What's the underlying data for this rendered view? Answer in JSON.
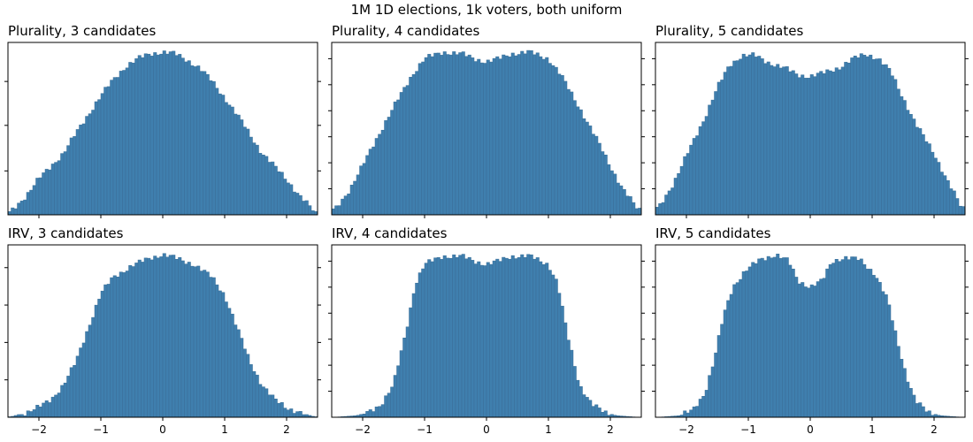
{
  "figure": {
    "suptitle": "1M 1D elections, 1k voters, both uniform"
  },
  "chart_data": [
    {
      "type": "bar",
      "title": "Plurality, 3 candidates",
      "method": "Plurality",
      "candidates": 3,
      "xlim": [
        -2.5,
        2.5
      ],
      "ylim": [
        0,
        1.06
      ],
      "bins": 100,
      "profile": [
        [
          -2.45,
          0.02
        ],
        [
          -2.2,
          0.12
        ],
        [
          -2.0,
          0.22
        ],
        [
          -1.6,
          0.38
        ],
        [
          -1.3,
          0.56
        ],
        [
          -1.0,
          0.73
        ],
        [
          -0.8,
          0.83
        ],
        [
          -0.6,
          0.91
        ],
        [
          -0.4,
          0.96
        ],
        [
          -0.2,
          0.99
        ],
        [
          0.0,
          1.0
        ],
        [
          0.2,
          0.99
        ],
        [
          0.4,
          0.95
        ],
        [
          0.6,
          0.9
        ],
        [
          0.8,
          0.82
        ],
        [
          1.0,
          0.72
        ],
        [
          1.3,
          0.56
        ],
        [
          1.6,
          0.38
        ],
        [
          2.0,
          0.22
        ],
        [
          2.2,
          0.12
        ],
        [
          2.45,
          0.02
        ]
      ],
      "xticks": [
        -2,
        -1,
        0,
        1,
        2
      ],
      "xtick_labels_shown": false,
      "yticks": [
        0.27,
        0.55,
        0.82
      ]
    },
    {
      "type": "bar",
      "title": "Plurality, 4 candidates",
      "method": "Plurality",
      "candidates": 4,
      "xlim": [
        -2.5,
        2.5
      ],
      "ylim": [
        0,
        1.06
      ],
      "bins": 100,
      "profile": [
        [
          -2.45,
          0.03
        ],
        [
          -2.2,
          0.16
        ],
        [
          -2.0,
          0.3
        ],
        [
          -1.8,
          0.45
        ],
        [
          -1.5,
          0.66
        ],
        [
          -1.2,
          0.86
        ],
        [
          -1.0,
          0.96
        ],
        [
          -0.7,
          1.0
        ],
        [
          -0.4,
          0.99
        ],
        [
          -0.2,
          0.96
        ],
        [
          0.0,
          0.94
        ],
        [
          0.2,
          0.96
        ],
        [
          0.4,
          0.99
        ],
        [
          0.7,
          1.0
        ],
        [
          1.0,
          0.96
        ],
        [
          1.2,
          0.86
        ],
        [
          1.5,
          0.66
        ],
        [
          1.8,
          0.45
        ],
        [
          2.0,
          0.3
        ],
        [
          2.2,
          0.16
        ],
        [
          2.45,
          0.03
        ]
      ],
      "xticks": [
        -2,
        -1,
        0,
        1,
        2
      ],
      "xtick_labels_shown": false,
      "yticks": [
        0.16,
        0.32,
        0.48,
        0.64,
        0.8,
        0.96
      ]
    },
    {
      "type": "bar",
      "title": "Plurality, 5 candidates",
      "method": "Plurality",
      "candidates": 5,
      "xlim": [
        -2.5,
        2.5
      ],
      "ylim": [
        0,
        1.06
      ],
      "bins": 100,
      "profile": [
        [
          -2.45,
          0.04
        ],
        [
          -2.2,
          0.2
        ],
        [
          -2.0,
          0.36
        ],
        [
          -1.7,
          0.6
        ],
        [
          -1.5,
          0.78
        ],
        [
          -1.3,
          0.92
        ],
        [
          -1.1,
          0.98
        ],
        [
          -0.9,
          0.98
        ],
        [
          -0.7,
          0.94
        ],
        [
          -0.4,
          0.9
        ],
        [
          -0.2,
          0.86
        ],
        [
          0.0,
          0.85
        ],
        [
          0.2,
          0.87
        ],
        [
          0.5,
          0.91
        ],
        [
          0.7,
          0.96
        ],
        [
          0.9,
          0.99
        ],
        [
          1.1,
          0.96
        ],
        [
          1.3,
          0.88
        ],
        [
          1.5,
          0.72
        ],
        [
          1.7,
          0.56
        ],
        [
          2.0,
          0.38
        ],
        [
          2.2,
          0.22
        ],
        [
          2.45,
          0.04
        ]
      ],
      "xticks": [
        -2,
        -1,
        0,
        1,
        2
      ],
      "xtick_labels_shown": false,
      "yticks": [
        0.16,
        0.32,
        0.48,
        0.64,
        0.8,
        0.96
      ]
    },
    {
      "type": "bar",
      "title": "IRV, 3 candidates",
      "method": "IRV",
      "candidates": 3,
      "xlim": [
        -2.5,
        2.5
      ],
      "ylim": [
        0,
        1.06
      ],
      "bins": 100,
      "profile": [
        [
          -2.45,
          0.003
        ],
        [
          -2.2,
          0.03
        ],
        [
          -2.0,
          0.06
        ],
        [
          -1.8,
          0.11
        ],
        [
          -1.6,
          0.2
        ],
        [
          -1.4,
          0.34
        ],
        [
          -1.2,
          0.55
        ],
        [
          -1.0,
          0.76
        ],
        [
          -0.8,
          0.86
        ],
        [
          -0.5,
          0.93
        ],
        [
          -0.2,
          0.98
        ],
        [
          0.0,
          1.0
        ],
        [
          0.2,
          0.98
        ],
        [
          0.5,
          0.94
        ],
        [
          0.8,
          0.86
        ],
        [
          1.0,
          0.75
        ],
        [
          1.2,
          0.55
        ],
        [
          1.4,
          0.35
        ],
        [
          1.6,
          0.2
        ],
        [
          1.8,
          0.11
        ],
        [
          2.0,
          0.06
        ],
        [
          2.2,
          0.03
        ],
        [
          2.45,
          0.003
        ]
      ],
      "xticks": [
        -2,
        -1,
        0,
        1,
        2
      ],
      "xtick_labels_shown": true,
      "yticks": [
        0.23,
        0.46,
        0.69,
        0.92
      ]
    },
    {
      "type": "bar",
      "title": "IRV, 4 candidates",
      "method": "IRV",
      "candidates": 4,
      "xlim": [
        -2.5,
        2.5
      ],
      "ylim": [
        0,
        1.06
      ],
      "bins": 100,
      "profile": [
        [
          -2.45,
          0.0
        ],
        [
          -2.1,
          0.01
        ],
        [
          -1.9,
          0.03
        ],
        [
          -1.7,
          0.08
        ],
        [
          -1.5,
          0.2
        ],
        [
          -1.3,
          0.52
        ],
        [
          -1.15,
          0.82
        ],
        [
          -1.0,
          0.94
        ],
        [
          -0.7,
          0.99
        ],
        [
          -0.4,
          0.99
        ],
        [
          -0.2,
          0.96
        ],
        [
          0.0,
          0.94
        ],
        [
          0.2,
          0.96
        ],
        [
          0.4,
          0.99
        ],
        [
          0.7,
          0.99
        ],
        [
          1.0,
          0.94
        ],
        [
          1.15,
          0.82
        ],
        [
          1.3,
          0.52
        ],
        [
          1.5,
          0.2
        ],
        [
          1.7,
          0.08
        ],
        [
          1.9,
          0.03
        ],
        [
          2.1,
          0.01
        ],
        [
          2.45,
          0.0
        ]
      ],
      "xticks": [
        -2,
        -1,
        0,
        1,
        2
      ],
      "xtick_labels_shown": true,
      "yticks": [
        0.16,
        0.32,
        0.48,
        0.64,
        0.8,
        0.96
      ]
    },
    {
      "type": "bar",
      "title": "IRV, 5 candidates",
      "method": "IRV",
      "candidates": 5,
      "xlim": [
        -2.5,
        2.5
      ],
      "ylim": [
        0,
        1.06
      ],
      "bins": 100,
      "profile": [
        [
          -2.45,
          0.0
        ],
        [
          -2.1,
          0.01
        ],
        [
          -1.9,
          0.04
        ],
        [
          -1.7,
          0.15
        ],
        [
          -1.55,
          0.35
        ],
        [
          -1.4,
          0.62
        ],
        [
          -1.25,
          0.8
        ],
        [
          -1.05,
          0.9
        ],
        [
          -0.8,
          0.97
        ],
        [
          -0.55,
          1.0
        ],
        [
          -0.35,
          0.96
        ],
        [
          -0.2,
          0.84
        ],
        [
          0.0,
          0.8
        ],
        [
          0.2,
          0.84
        ],
        [
          0.35,
          0.96
        ],
        [
          0.55,
          0.98
        ],
        [
          0.8,
          0.97
        ],
        [
          1.05,
          0.88
        ],
        [
          1.25,
          0.72
        ],
        [
          1.4,
          0.48
        ],
        [
          1.55,
          0.26
        ],
        [
          1.7,
          0.1
        ],
        [
          1.9,
          0.03
        ],
        [
          2.1,
          0.01
        ],
        [
          2.45,
          0.0
        ]
      ],
      "xticks": [
        -2,
        -1,
        0,
        1,
        2
      ],
      "xtick_labels_shown": true,
      "yticks": [
        0.16,
        0.32,
        0.48,
        0.64,
        0.8,
        0.96
      ]
    }
  ]
}
